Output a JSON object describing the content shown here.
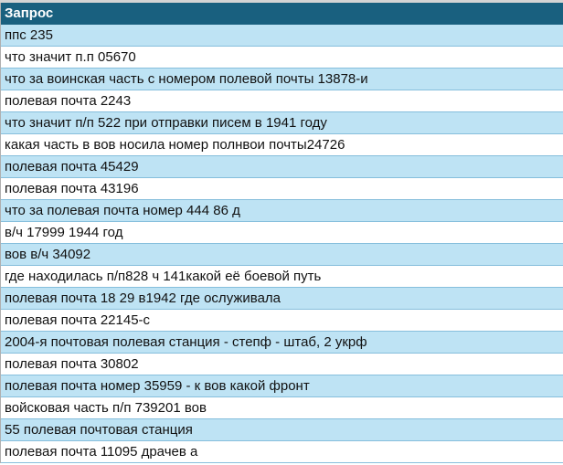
{
  "header": {
    "title": "Запрос"
  },
  "colors": {
    "header_bg": "#19607f",
    "band_bg": "#bee3f4",
    "row_bg": "#ffffff"
  },
  "rows": [
    "ппс 235",
    "что значит п.п 05670",
    "что за воинская часть с номером полевой почты 13878-и",
    "полевая почта 2243",
    "что значит п/п 522 при отправки писем в 1941 году",
    "какая часть в вов носила номер полнвои почты24726",
    "полевая почта 45429",
    "полевая почта 43196",
    "что за полевая почта номер 444 86 д",
    "в/ч 17999 1944 год",
    "вов в/ч 34092",
    "где находилась п/п828 ч 141какой её боевой путь",
    "полевая почта 18 29 в1942 где ослуживала",
    "полевая почта 22145-с",
    "2004-я почтовая полевая станция - степф - штаб, 2 укрф",
    "полевая почта 30802",
    "полевая почта номер 35959 - к вов какой фронт",
    "войсковая часть п/п 739201 вов",
    "55 полевая почтовая станция",
    "полевая почта 11095 драчев а"
  ]
}
